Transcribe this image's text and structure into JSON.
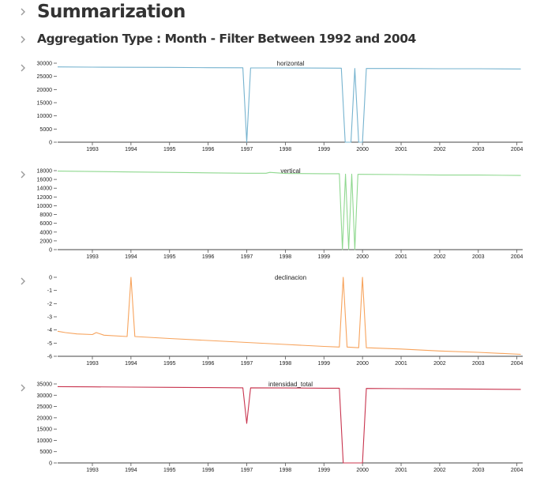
{
  "page": {
    "title": "Summarization",
    "subtitle": "Aggregation Type : Month - Filter Between 1992 and 2004"
  },
  "icons": {
    "expander": "chevron-right-icon"
  },
  "chart_data": [
    {
      "type": "line",
      "title": "horizontal",
      "color": "#76b3cf",
      "xlim": [
        1992.1,
        2004.15
      ],
      "ylim": [
        0,
        30000
      ],
      "yticks": [
        0,
        5000,
        10000,
        15000,
        20000,
        25000,
        30000
      ],
      "xticks": [
        "1993",
        "1994",
        "1995",
        "1996",
        "1997",
        "1998",
        "1999",
        "2000",
        "2001",
        "2002",
        "2003",
        "2004"
      ],
      "x": [
        1992.1,
        1993.0,
        1994.0,
        1995.0,
        1996.0,
        1996.9,
        1997.0,
        1997.1,
        1998.0,
        1999.0,
        1999.45,
        1999.55,
        1999.7,
        1999.8,
        1999.9,
        2000.0,
        2000.1,
        2001.0,
        2002.0,
        2003.0,
        2004.1
      ],
      "y": [
        28600,
        28500,
        28450,
        28400,
        28300,
        28250,
        0,
        28200,
        28200,
        28150,
        28100,
        0,
        0,
        28000,
        0,
        0,
        28000,
        28000,
        27900,
        27900,
        27800
      ]
    },
    {
      "type": "line",
      "title": "vertical",
      "color": "#8fd88f",
      "xlim": [
        1992.1,
        2004.15
      ],
      "ylim": [
        0,
        18000
      ],
      "yticks": [
        0,
        2000,
        4000,
        6000,
        8000,
        10000,
        12000,
        14000,
        16000,
        18000
      ],
      "xticks": [
        "1993",
        "1994",
        "1995",
        "1996",
        "1997",
        "1998",
        "1999",
        "2000",
        "2001",
        "2002",
        "2003",
        "2004"
      ],
      "x": [
        1992.1,
        1993.0,
        1994.0,
        1995.0,
        1996.0,
        1997.0,
        1997.5,
        1997.6,
        1998.0,
        1999.0,
        1999.4,
        1999.48,
        1999.56,
        1999.64,
        1999.72,
        1999.8,
        1999.88,
        2000.0,
        2001.0,
        2002.0,
        2003.0,
        2004.1
      ],
      "y": [
        17900,
        17800,
        17700,
        17600,
        17500,
        17400,
        17400,
        17600,
        17350,
        17300,
        17300,
        0,
        17200,
        0,
        17200,
        0,
        17150,
        17150,
        17100,
        17000,
        17000,
        16900
      ]
    },
    {
      "type": "line",
      "title": "declinacion",
      "color": "#f7a35c",
      "xlim": [
        1992.1,
        2004.15
      ],
      "ylim": [
        -6,
        0
      ],
      "yticks": [
        -6,
        -5,
        -4,
        -3,
        -2,
        -1,
        0
      ],
      "xticks": [
        "1993",
        "1994",
        "1995",
        "1996",
        "1997",
        "1998",
        "1999",
        "2000",
        "2001",
        "2002",
        "2003",
        "2004"
      ],
      "x": [
        1992.1,
        1992.3,
        1992.6,
        1993.0,
        1993.1,
        1993.3,
        1993.9,
        1994.0,
        1994.1,
        1995.0,
        1996.0,
        1997.0,
        1998.0,
        1999.0,
        1999.4,
        1999.5,
        1999.6,
        1999.9,
        2000.0,
        2000.1,
        2001.0,
        2002.0,
        2003.0,
        2004.1
      ],
      "y": [
        -4.1,
        -4.2,
        -4.3,
        -4.35,
        -4.2,
        -4.4,
        -4.5,
        0,
        -4.5,
        -4.65,
        -4.8,
        -4.95,
        -5.1,
        -5.25,
        -5.3,
        0,
        -5.3,
        -5.35,
        0,
        -5.35,
        -5.45,
        -5.6,
        -5.7,
        -5.85
      ]
    },
    {
      "type": "line",
      "title": "intensidad_total",
      "color": "#c8344e",
      "xlim": [
        1992.1,
        2004.15
      ],
      "ylim": [
        0,
        35000
      ],
      "yticks": [
        0,
        5000,
        10000,
        15000,
        20000,
        25000,
        30000,
        35000
      ],
      "xticks": [
        "1993",
        "1994",
        "1995",
        "1996",
        "1997",
        "1998",
        "1999",
        "2000",
        "2001",
        "2002",
        "2003",
        "2004"
      ],
      "x": [
        1992.1,
        1993.0,
        1994.0,
        1995.0,
        1996.0,
        1996.9,
        1997.0,
        1997.1,
        1998.0,
        1999.0,
        1999.4,
        1999.5,
        1999.9,
        2000.0,
        2000.1,
        2001.0,
        2002.0,
        2003.0,
        2004.1
      ],
      "y": [
        33800,
        33700,
        33600,
        33500,
        33400,
        33300,
        17500,
        33300,
        33200,
        33100,
        33100,
        0,
        0,
        0,
        33000,
        32900,
        32800,
        32700,
        32600
      ]
    }
  ]
}
